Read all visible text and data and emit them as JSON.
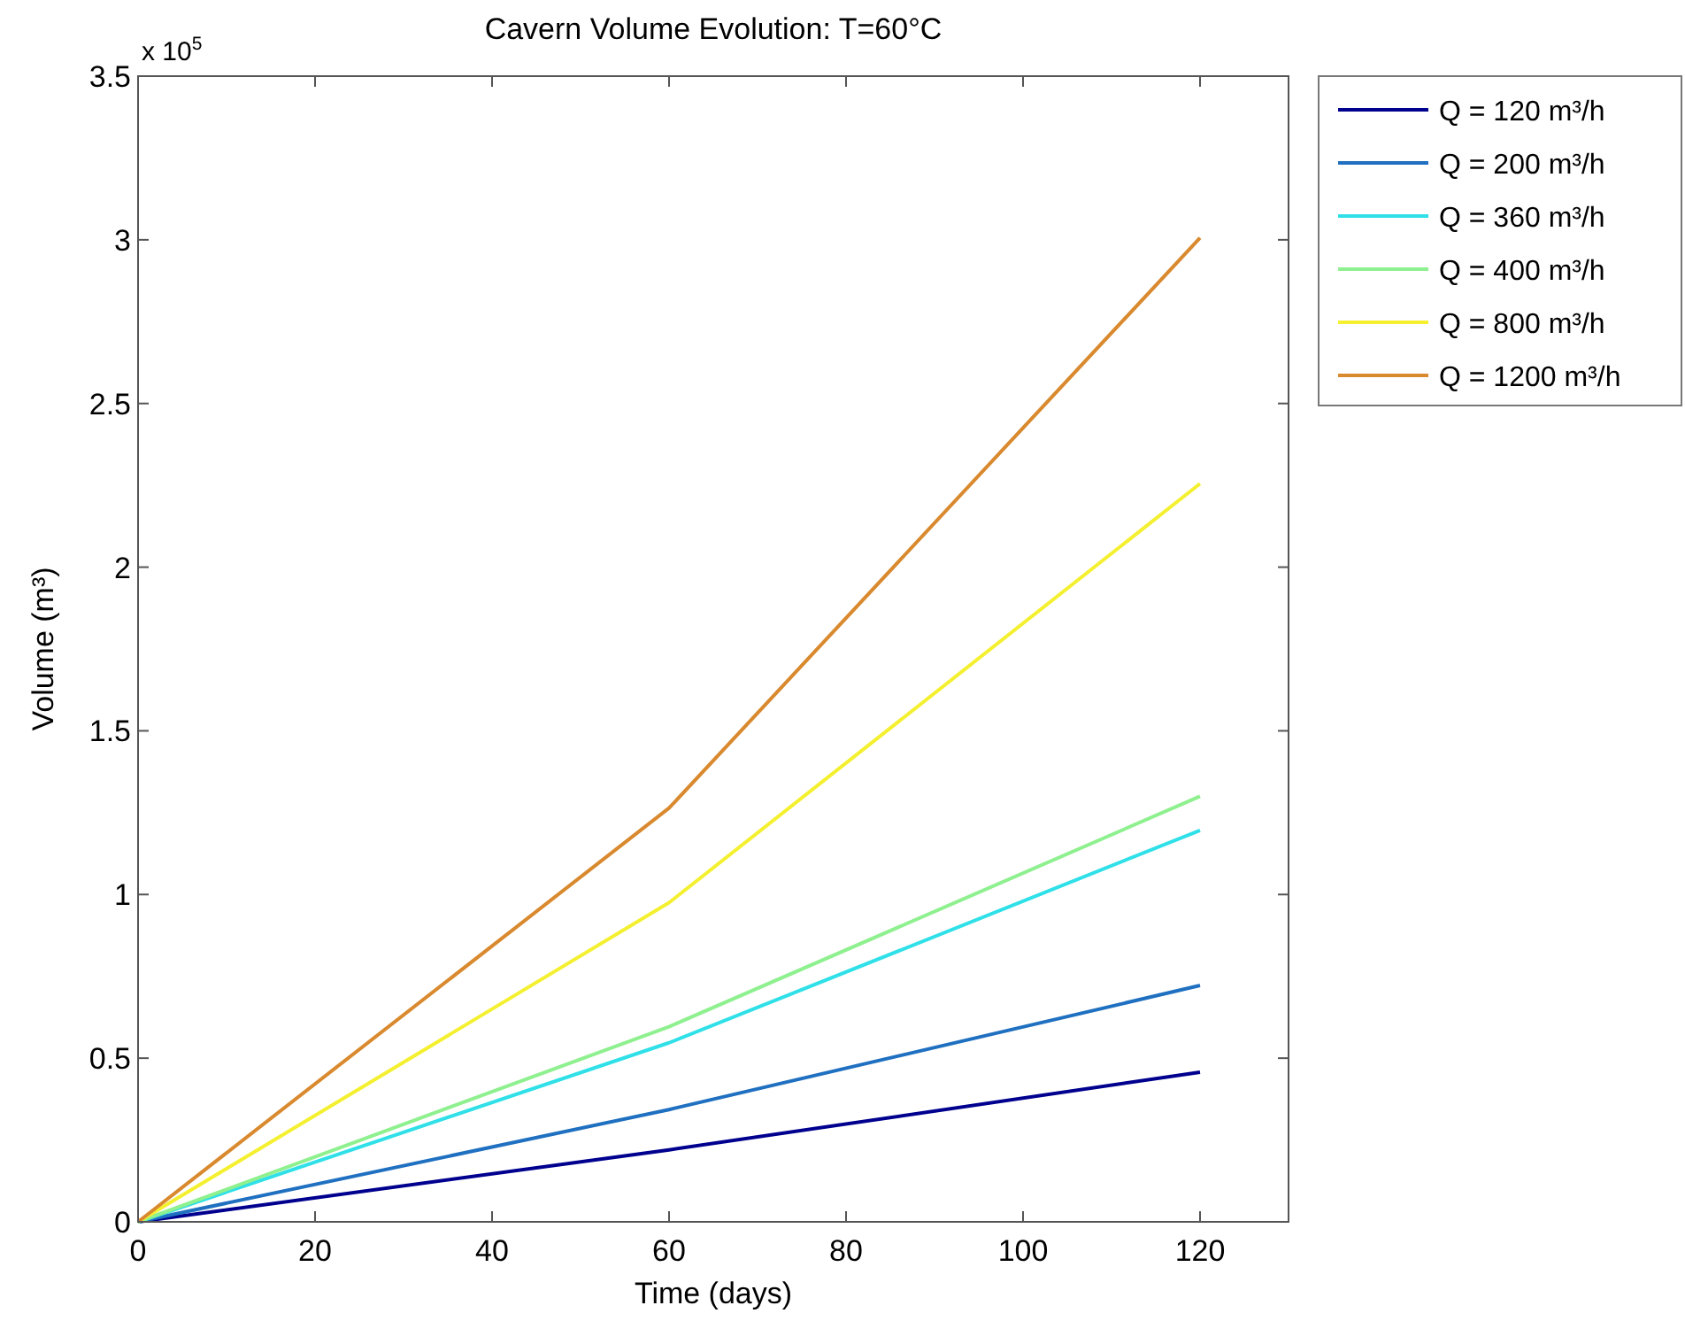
{
  "chart_data": {
    "type": "line",
    "title": "Cavern Volume Evolution:  T=60°C",
    "xlabel": "Time (days)",
    "ylabel": "Volume (m³)",
    "annotations": [
      "x 10$^{5}$"
    ],
    "x": [
      0,
      60,
      120
    ],
    "series": [
      {
        "name": "Q = 120 m³/h",
        "color": "#00008f",
        "values": [
          0,
          0.22,
          0.457
        ]
      },
      {
        "name": "Q = 200 m³/h",
        "color": "#1f70c0",
        "values": [
          0,
          0.343,
          0.722
        ]
      },
      {
        "name": "Q = 360 m³/h",
        "color": "#30e0e8",
        "values": [
          0,
          0.547,
          1.196
        ]
      },
      {
        "name": "Q = 400 m³/h",
        "color": "#8ef08e",
        "values": [
          0,
          0.596,
          1.3
        ]
      },
      {
        "name": "Q = 800 m³/h",
        "color": "#f4f030",
        "values": [
          0,
          0.975,
          2.255
        ]
      },
      {
        "name": "Q = 1200 m³/h",
        "color": "#d9892e",
        "values": [
          0,
          1.264,
          3.006
        ]
      }
    ],
    "xlim": [
      0,
      130
    ],
    "xticks": [
      0,
      20,
      40,
      60,
      80,
      100,
      120
    ],
    "ylim": [
      0,
      3.5
    ],
    "yticks": [
      0,
      0.5,
      1,
      1.5,
      2,
      2.5,
      3,
      3.5
    ],
    "legend": "top right",
    "grid": false,
    "marker": "none",
    "line_style": "solid"
  }
}
